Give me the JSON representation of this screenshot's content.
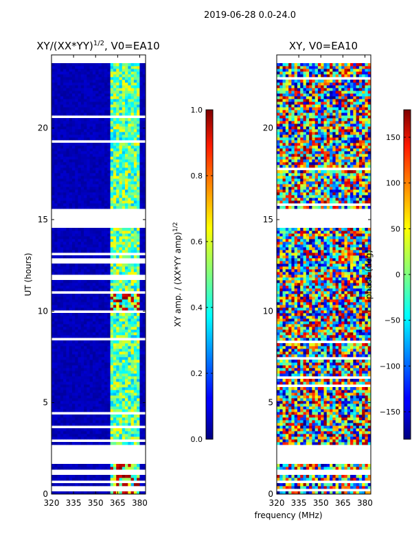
{
  "figure": {
    "suptitle": "2019-06-28 0.0-24.0",
    "xlabel_shared": "frequency (MHz)"
  },
  "chart_data": [
    {
      "type": "heatmap",
      "title": "XY/(XX*YY)",
      "title_exponent": "1/2",
      "title_suffix": ", V0=EA10",
      "xlabel": "frequency (MHz)",
      "ylabel": "UT (hours)",
      "xlim": [
        320,
        384
      ],
      "ylim": [
        0,
        24
      ],
      "xticks": [
        "320",
        "335",
        "350",
        "365",
        "380"
      ],
      "xtick_values": [
        320,
        335,
        350,
        365,
        380
      ],
      "yticks": [
        "0",
        "5",
        "10",
        "15",
        "20"
      ],
      "ytick_values": [
        0,
        5,
        10,
        15,
        20
      ],
      "colorbar": {
        "label": "XY amp. / (XX*YY amp)",
        "label_exponent": "1/2",
        "range": [
          0.0,
          1.0
        ],
        "ticks": [
          "0.0",
          "0.2",
          "0.4",
          "0.6",
          "0.8",
          "1.0"
        ],
        "tick_values": [
          0.0,
          0.2,
          0.4,
          0.6,
          0.8,
          1.0
        ],
        "colormap": "jet"
      },
      "data_gaps_hours": [
        [
          0.2,
          0.3
        ],
        [
          0.6,
          0.75
        ],
        [
          1.1,
          1.3
        ],
        [
          1.6,
          2.7
        ],
        [
          14.6,
          15.6
        ],
        [
          23.6,
          24.0
        ]
      ],
      "high_amplitude_band_mhz": [
        361,
        380
      ],
      "notes": "Mostly low amplitude (~0.0) from 320-360 MHz; 361-380 MHz shows 0.3-0.6 with spikes near 1.0 around 0-1.5 h and 9.9-10.9 h"
    },
    {
      "type": "heatmap",
      "title": "XY, V0=EA10",
      "xlabel": "frequency (MHz)",
      "xlim": [
        320,
        384
      ],
      "ylim": [
        0,
        24
      ],
      "xticks": [
        "320",
        "335",
        "350",
        "365",
        "380"
      ],
      "xtick_values": [
        320,
        335,
        350,
        365,
        380
      ],
      "yticks": [
        "0",
        "5",
        "10",
        "15",
        "20"
      ],
      "ytick_values": [
        0,
        5,
        10,
        15,
        20
      ],
      "colorbar": {
        "label": "phase (deg)",
        "range": [
          -180,
          180
        ],
        "ticks": [
          "−150",
          "−100",
          "−50",
          "0",
          "50",
          "100",
          "150"
        ],
        "tick_values": [
          -150,
          -100,
          -50,
          0,
          50,
          100,
          150
        ],
        "colormap": "jet"
      },
      "data_gaps_hours": [
        [
          0.2,
          0.3
        ],
        [
          0.6,
          0.75
        ],
        [
          1.1,
          1.3
        ],
        [
          1.6,
          2.7
        ],
        [
          14.6,
          15.6
        ],
        [
          23.6,
          24.0
        ]
      ],
      "notes": "Phase values scattered across full -180 to 180 range"
    }
  ]
}
